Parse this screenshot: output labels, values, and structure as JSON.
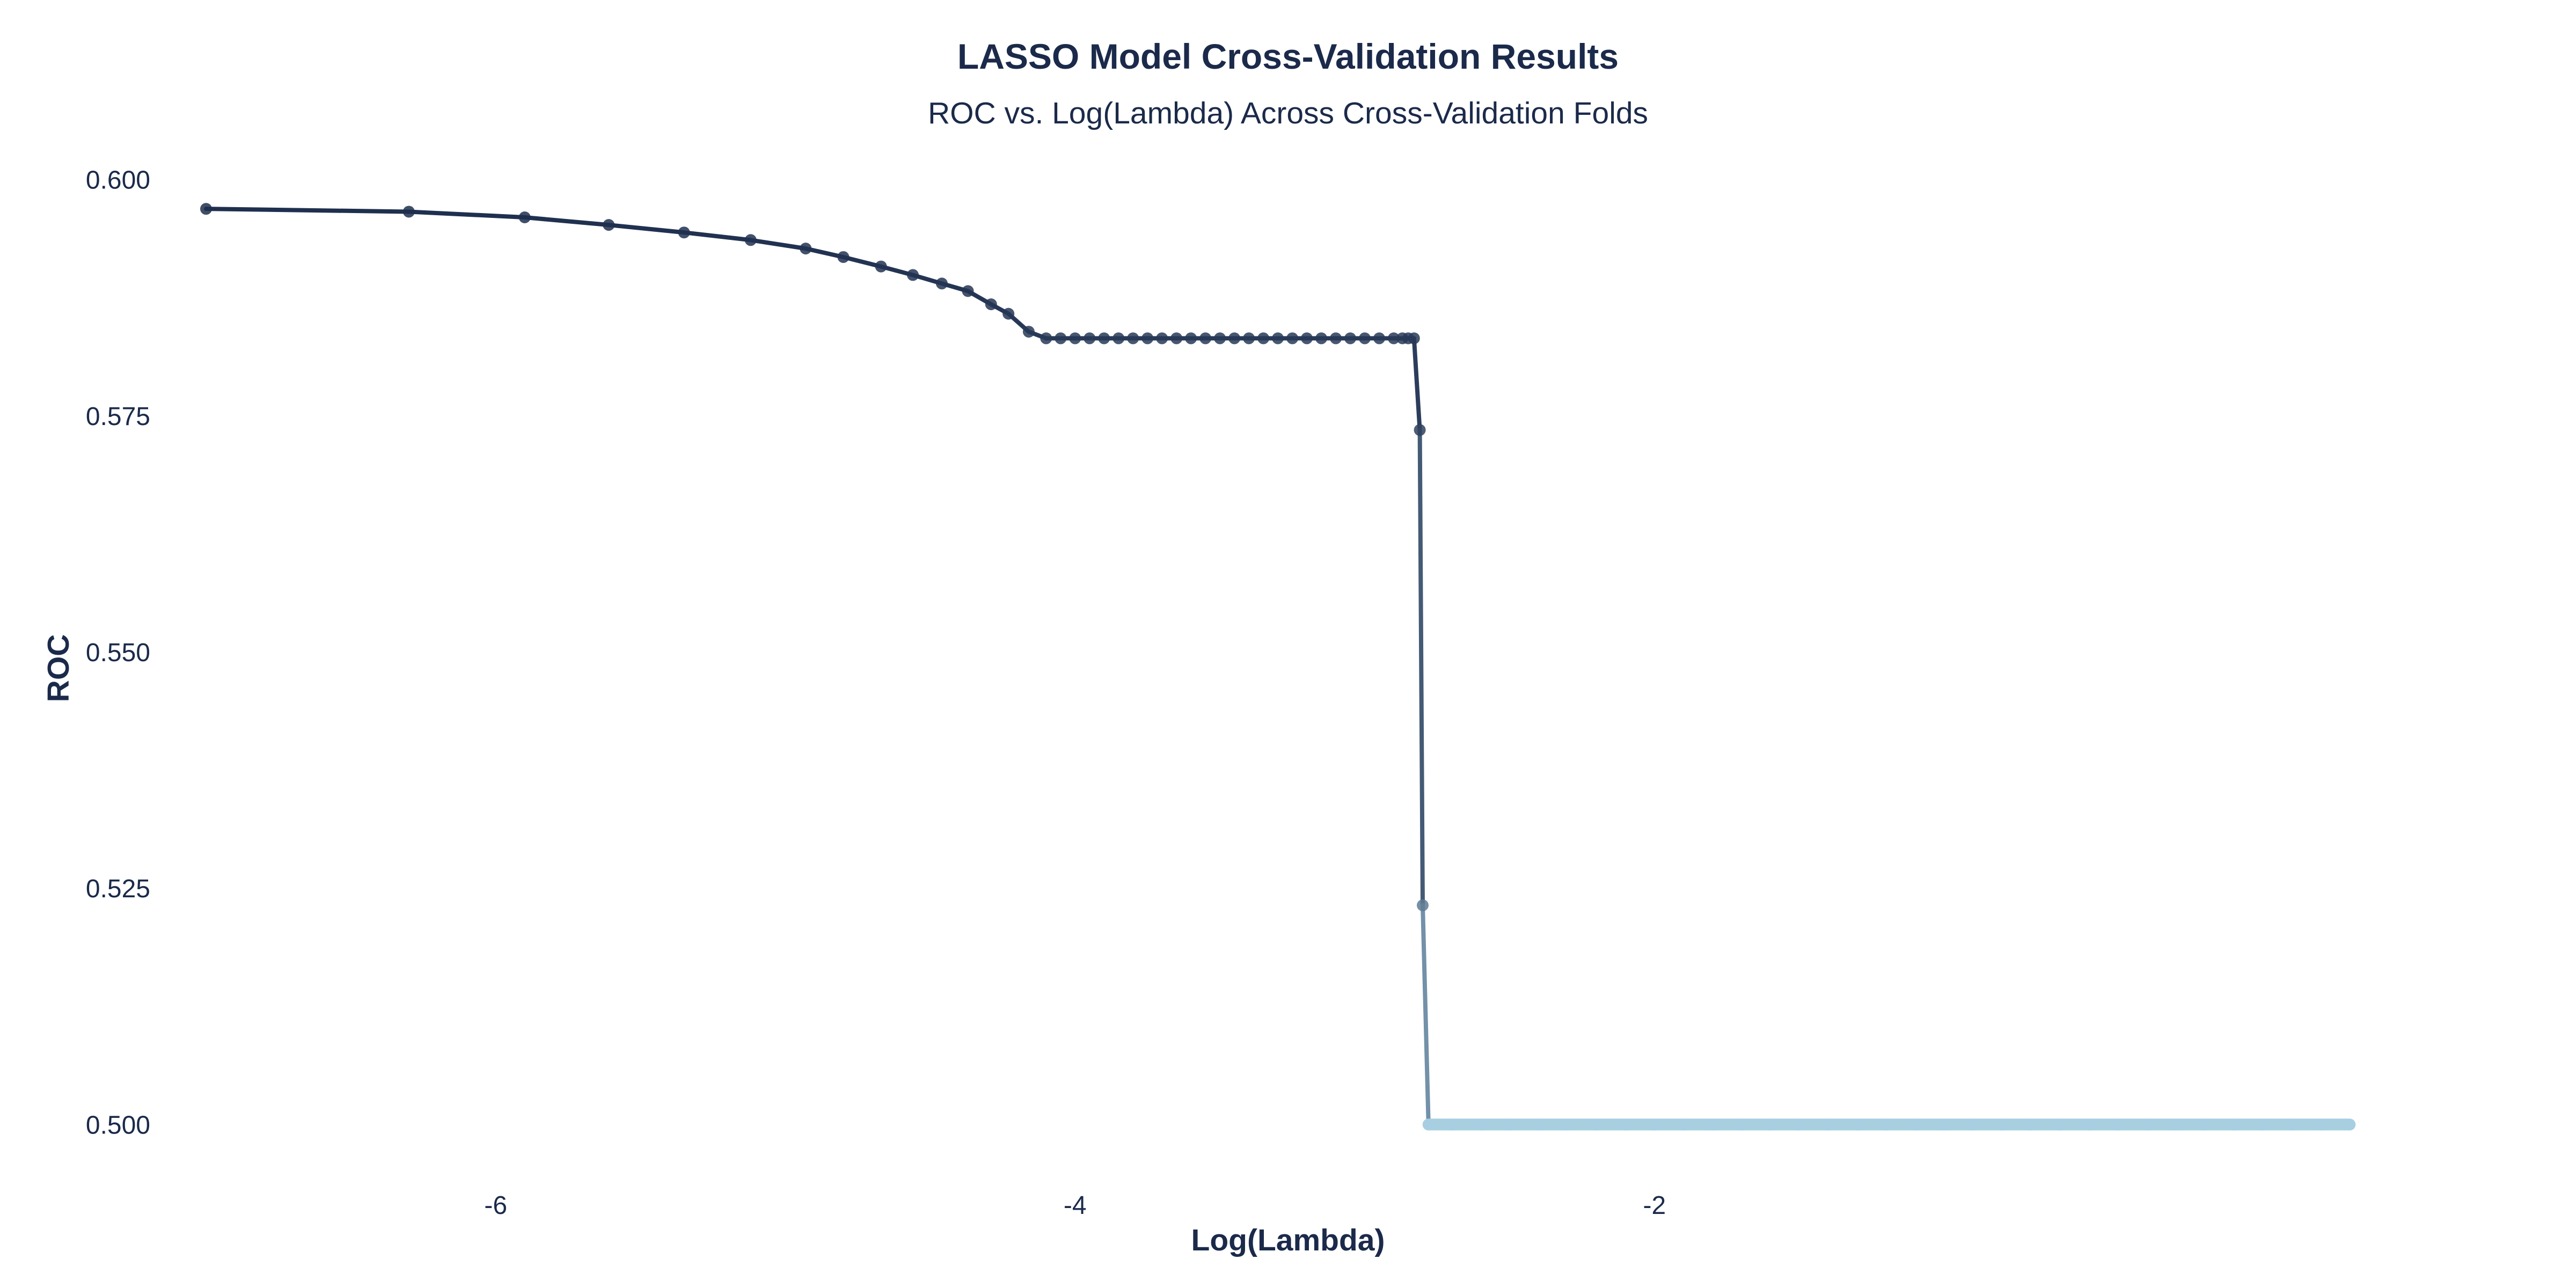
{
  "chart_data": {
    "type": "line",
    "title": "LASSO Model Cross-Validation Results",
    "subtitle": "ROC vs. Log(Lambda) Across Cross-Validation Folds",
    "xlabel": "Log(Lambda)",
    "ylabel": "ROC",
    "xlim": [
      -7.1,
      0.57
    ],
    "ylim": [
      0.4969,
      0.6031
    ],
    "x_ticks": [
      -6,
      -4,
      -2
    ],
    "x_tick_labels": [
      "-6",
      "-4",
      "-2"
    ],
    "y_ticks": [
      0.5,
      0.525,
      0.55,
      0.575,
      0.6
    ],
    "y_tick_labels": [
      "0.500",
      "0.525",
      "0.550",
      "0.575",
      "0.600"
    ],
    "grid": false,
    "legend": "none",
    "colors": {
      "high": "#1b2a4a",
      "low": "#a8cfe0",
      "text": "#1b2a4a"
    },
    "series": [
      {
        "x": [
          -7.0,
          -6.3,
          -5.9,
          -5.61,
          -5.35,
          -5.12,
          -4.93,
          -4.8,
          -4.67,
          -4.56,
          -4.46,
          -4.37,
          -4.29,
          -4.23,
          -4.16,
          -4.1,
          -4.05,
          -4.0,
          -3.95,
          -3.9,
          -3.85,
          -3.8,
          -3.75,
          -3.7,
          -3.65,
          -3.6,
          -3.55,
          -3.5,
          -3.45,
          -3.4,
          -3.35,
          -3.3,
          -3.25,
          -3.2,
          -3.15,
          -3.1,
          -3.05,
          -3.0,
          -2.95,
          -2.9,
          -2.87,
          -2.85,
          -2.83,
          -2.81,
          -2.8,
          -2.78,
          -2.7,
          -2.6,
          -2.5,
          -2.4,
          -2.3,
          -2.2,
          -2.1,
          -2.0,
          -1.9,
          -1.8,
          -1.7,
          -1.6,
          -1.5,
          -1.4,
          -1.3,
          -1.2,
          -1.1,
          -1.0,
          -0.9,
          -0.8,
          -0.7,
          -0.6,
          -0.5,
          -0.4,
          -0.3,
          -0.2,
          -0.1,
          0.0,
          0.1,
          0.2,
          0.3,
          0.4
        ],
        "y": [
          0.5969,
          0.5966,
          0.596,
          0.5952,
          0.5944,
          0.5936,
          0.5927,
          0.5918,
          0.5908,
          0.5899,
          0.589,
          0.5882,
          0.5868,
          0.5858,
          0.5839,
          0.5832,
          0.5832,
          0.5832,
          0.5832,
          0.5832,
          0.5832,
          0.5832,
          0.5832,
          0.5832,
          0.5832,
          0.5832,
          0.5832,
          0.5832,
          0.5832,
          0.5832,
          0.5832,
          0.5832,
          0.5832,
          0.5832,
          0.5832,
          0.5832,
          0.5832,
          0.5832,
          0.5832,
          0.5832,
          0.5832,
          0.5832,
          0.5832,
          0.5735,
          0.5232,
          0.5,
          0.5,
          0.5,
          0.5,
          0.5,
          0.5,
          0.5,
          0.5,
          0.5,
          0.5,
          0.5,
          0.5,
          0.5,
          0.5,
          0.5,
          0.5,
          0.5,
          0.5,
          0.5,
          0.5,
          0.5,
          0.5,
          0.5,
          0.5,
          0.5,
          0.5,
          0.5,
          0.5,
          0.5,
          0.5,
          0.5,
          0.5,
          0.5
        ]
      }
    ]
  }
}
